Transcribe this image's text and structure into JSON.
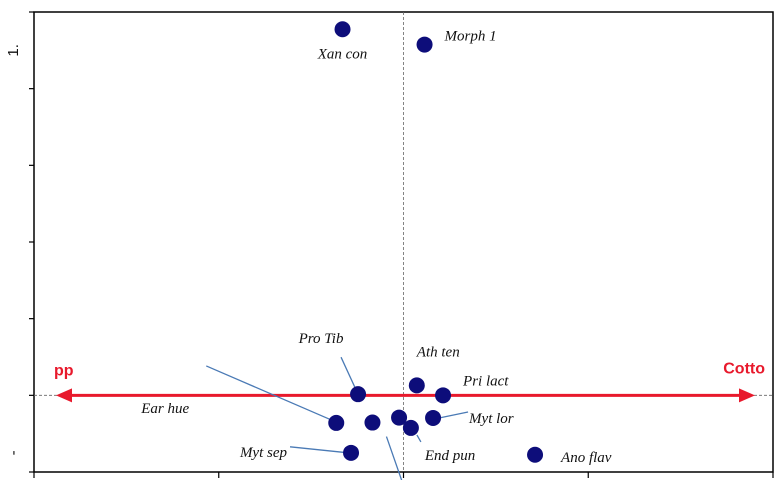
{
  "chart_data": {
    "type": "scatter",
    "title": "",
    "xlabel": "",
    "ylabel": "",
    "xlim": [
      -1.0,
      1.0
    ],
    "ylim": [
      -0.2,
      1.0
    ],
    "y_tick_labels": [
      {
        "y": 0.9,
        "text": "1."
      },
      {
        "y": -0.15,
        "text": "-"
      }
    ],
    "x_ticks": [
      -1.0,
      -0.5,
      0.0,
      0.5,
      1.0
    ],
    "y_ticks": [
      -0.2,
      0.0,
      0.2,
      0.4,
      0.6,
      0.8,
      1.0
    ],
    "reference_lines": {
      "vertical_dashed_at_x": 0.0
    },
    "arrow": {
      "left_label": "pp",
      "right_label": "Cotto",
      "color": "#e8192c",
      "y": 0.0
    },
    "points": [
      {
        "name": "Xan con",
        "x": -0.165,
        "y": 0.955
      },
      {
        "name": "Morph 1",
        "x": 0.057,
        "y": 0.915
      },
      {
        "name": "Pro Tib",
        "x": -0.123,
        "y": 0.003
      },
      {
        "name": "Ear hue",
        "x": -0.182,
        "y": -0.072
      },
      {
        "name": "Myt sep",
        "x": -0.142,
        "y": -0.15
      },
      {
        "name": "Unlabeled",
        "x": -0.084,
        "y": -0.071
      },
      {
        "name": "Unlabeled",
        "x": -0.012,
        "y": -0.058
      },
      {
        "name": "Ath ten",
        "x": 0.036,
        "y": 0.026
      },
      {
        "name": "Pri lact",
        "x": 0.107,
        "y": 0.0
      },
      {
        "name": "Myt lor",
        "x": 0.08,
        "y": -0.059
      },
      {
        "name": "End pun",
        "x": 0.02,
        "y": -0.085
      },
      {
        "name": "Ano flav",
        "x": 0.356,
        "y": -0.155
      }
    ],
    "point_color": "#0d0d7a",
    "leader_color": "#4a7ab5"
  }
}
